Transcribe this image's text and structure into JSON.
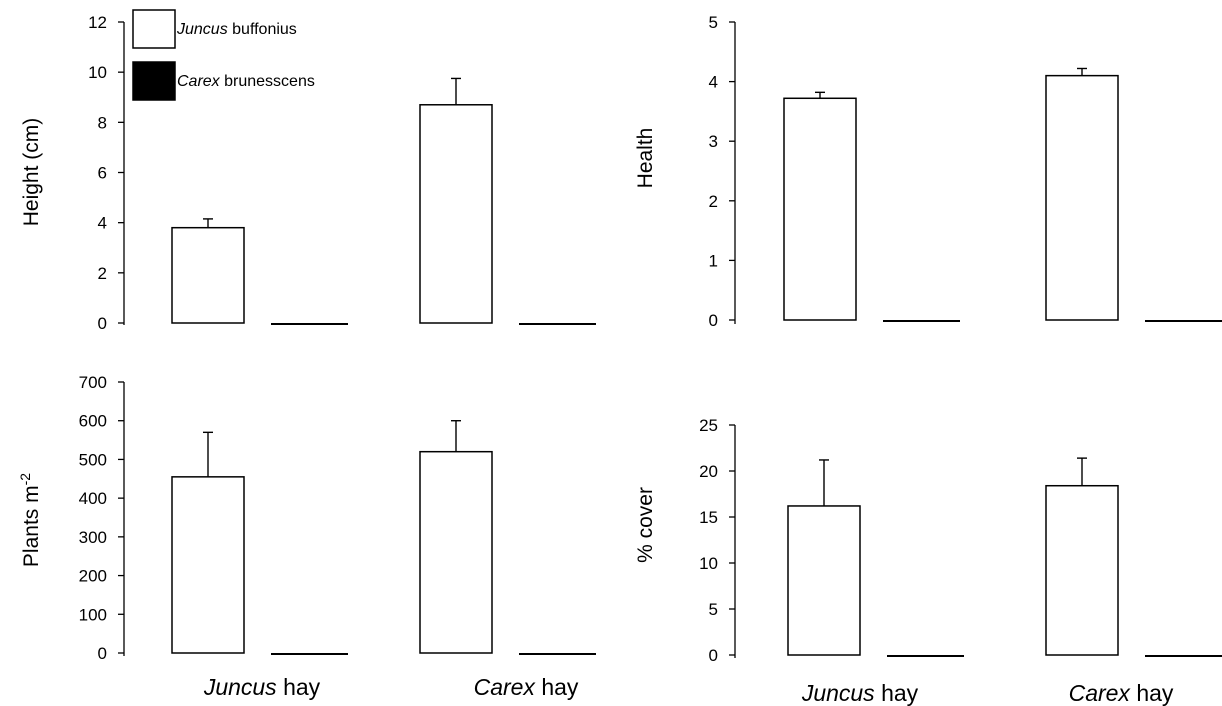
{
  "legend": {
    "items": [
      {
        "genus": "Juncus",
        "rest": " buffonius",
        "color": "#ffffff"
      },
      {
        "genus": "Carex",
        "rest": " brunesscens",
        "color": "#000000"
      }
    ]
  },
  "x_groups": [
    {
      "genus": "Juncus",
      "rest": " hay"
    },
    {
      "genus": "Carex",
      "rest": " hay"
    }
  ],
  "chart_data": [
    {
      "type": "bar",
      "id": "height",
      "ylabel": "Height (cm)",
      "ylim": [
        0,
        12
      ],
      "yticks": [
        0,
        2,
        4,
        6,
        8,
        10,
        12
      ],
      "categories": [
        "Juncus hay",
        "Carex hay"
      ],
      "series": [
        {
          "name": "Juncus buffonius",
          "values": [
            3.8,
            8.7
          ],
          "errors": [
            0.35,
            1.05
          ]
        },
        {
          "name": "Carex brunesscens",
          "values": [
            0,
            0
          ],
          "errors": [
            0,
            0
          ]
        }
      ]
    },
    {
      "type": "bar",
      "id": "health",
      "ylabel": "Health",
      "ylim": [
        0,
        5
      ],
      "yticks": [
        0,
        1,
        2,
        3,
        4,
        5
      ],
      "categories": [
        "Juncus hay",
        "Carex hay"
      ],
      "series": [
        {
          "name": "Juncus buffonius",
          "values": [
            3.72,
            4.1
          ],
          "errors": [
            0.1,
            0.12
          ]
        },
        {
          "name": "Carex brunesscens",
          "values": [
            0,
            0
          ],
          "errors": [
            0,
            0
          ]
        }
      ]
    },
    {
      "type": "bar",
      "id": "plants",
      "ylabel": "Plants m",
      "ylabel_sup": "-2",
      "ylim": [
        0,
        700
      ],
      "yticks": [
        0,
        100,
        200,
        300,
        400,
        500,
        600,
        700
      ],
      "categories": [
        "Juncus hay",
        "Carex hay"
      ],
      "series": [
        {
          "name": "Juncus buffonius",
          "values": [
            455,
            520
          ],
          "errors": [
            115,
            80
          ]
        },
        {
          "name": "Carex brunesscens",
          "values": [
            0,
            0
          ],
          "errors": [
            0,
            0
          ]
        }
      ]
    },
    {
      "type": "bar",
      "id": "cover",
      "ylabel": "% cover",
      "ylim": [
        0,
        25
      ],
      "yticks": [
        0,
        5,
        10,
        15,
        20,
        25
      ],
      "categories": [
        "Juncus hay",
        "Carex hay"
      ],
      "series": [
        {
          "name": "Juncus buffonius",
          "values": [
            16.2,
            18.4
          ],
          "errors": [
            5.0,
            3.0
          ]
        },
        {
          "name": "Carex brunesscens",
          "values": [
            0,
            0
          ],
          "errors": [
            0,
            0
          ]
        }
      ]
    }
  ]
}
